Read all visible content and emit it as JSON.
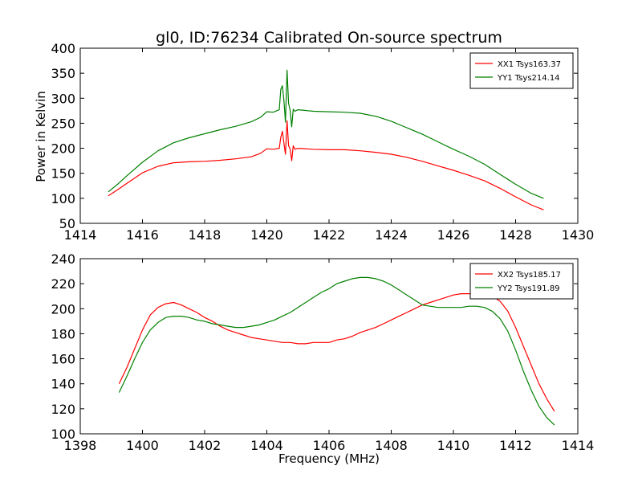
{
  "figure_title": "gl0, ID:76234 Calibrated On-source spectrum",
  "chart_data": [
    {
      "type": "line",
      "title": "gl0, ID:76234 Calibrated On-source spectrum",
      "xlabel": "",
      "ylabel": "Power in Kelvin",
      "xlim": [
        1414,
        1430
      ],
      "ylim": [
        50,
        400
      ],
      "xticks": [
        1414,
        1416,
        1418,
        1420,
        1422,
        1424,
        1426,
        1428,
        1430
      ],
      "yticks": [
        50,
        100,
        150,
        200,
        250,
        300,
        350,
        400
      ],
      "grid": false,
      "legend_position": "top-right",
      "series": [
        {
          "name": "XX1 Tsys163.37",
          "color": "#ff0000",
          "x": [
            1414.9,
            1415.2,
            1415.5,
            1416.0,
            1416.5,
            1417.0,
            1417.5,
            1418.0,
            1418.5,
            1419.0,
            1419.5,
            1419.8,
            1420.0,
            1420.2,
            1420.4,
            1420.45,
            1420.5,
            1420.55,
            1420.6,
            1420.65,
            1420.7,
            1420.75,
            1420.8,
            1420.85,
            1420.9,
            1421.0,
            1421.5,
            1422.0,
            1422.5,
            1423.0,
            1423.5,
            1424.0,
            1424.5,
            1425.0,
            1425.5,
            1426.0,
            1426.5,
            1427.0,
            1427.5,
            1428.0,
            1428.5,
            1428.9
          ],
          "y": [
            105,
            117,
            130,
            151,
            164,
            171,
            173,
            174,
            176,
            179,
            183,
            190,
            199,
            198,
            200,
            222,
            234,
            210,
            188,
            255,
            205,
            198,
            175,
            205,
            198,
            200,
            198,
            197,
            197,
            195,
            192,
            188,
            182,
            174,
            165,
            156,
            146,
            135,
            120,
            103,
            87,
            77
          ]
        },
        {
          "name": "YY1 Tsys214.14",
          "color": "#008000",
          "x": [
            1414.9,
            1415.2,
            1415.5,
            1416.0,
            1416.5,
            1417.0,
            1417.5,
            1418.0,
            1418.5,
            1419.0,
            1419.5,
            1419.8,
            1420.0,
            1420.2,
            1420.4,
            1420.45,
            1420.5,
            1420.55,
            1420.6,
            1420.65,
            1420.7,
            1420.75,
            1420.8,
            1420.85,
            1420.9,
            1421.0,
            1421.5,
            1422.0,
            1422.5,
            1423.0,
            1423.5,
            1424.0,
            1424.5,
            1425.0,
            1425.5,
            1426.0,
            1426.5,
            1427.0,
            1427.5,
            1428.0,
            1428.5,
            1428.9
          ],
          "y": [
            113,
            128,
            145,
            172,
            195,
            211,
            221,
            229,
            237,
            244,
            253,
            262,
            273,
            272,
            277,
            318,
            325,
            295,
            252,
            356,
            290,
            275,
            243,
            278,
            274,
            277,
            274,
            273,
            272,
            270,
            264,
            254,
            241,
            228,
            213,
            198,
            184,
            168,
            148,
            128,
            110,
            100
          ]
        }
      ]
    },
    {
      "type": "line",
      "title": "",
      "xlabel": "Frequency (MHz)",
      "ylabel": "",
      "xlim": [
        1398,
        1414
      ],
      "ylim": [
        100,
        240
      ],
      "xticks": [
        1398,
        1400,
        1402,
        1404,
        1406,
        1408,
        1410,
        1412,
        1414
      ],
      "yticks": [
        100,
        120,
        140,
        160,
        180,
        200,
        220,
        240
      ],
      "grid": false,
      "legend_position": "top-right",
      "series": [
        {
          "name": "XX2 Tsys185.17",
          "color": "#ff0000",
          "x": [
            1399.25,
            1399.5,
            1399.75,
            1400.0,
            1400.25,
            1400.5,
            1400.75,
            1401.0,
            1401.25,
            1401.5,
            1401.75,
            1402.0,
            1402.25,
            1402.5,
            1402.75,
            1403.0,
            1403.25,
            1403.5,
            1403.75,
            1404.0,
            1404.25,
            1404.5,
            1404.75,
            1405.0,
            1405.25,
            1405.5,
            1405.75,
            1406.0,
            1406.25,
            1406.5,
            1406.75,
            1407.0,
            1407.25,
            1407.5,
            1407.75,
            1408.0,
            1408.25,
            1408.5,
            1408.75,
            1409.0,
            1409.25,
            1409.5,
            1409.75,
            1410.0,
            1410.25,
            1410.5,
            1410.75,
            1411.0,
            1411.25,
            1411.5,
            1411.75,
            1412.0,
            1412.25,
            1412.5,
            1412.75,
            1413.0,
            1413.25
          ],
          "y": [
            140,
            153,
            168,
            183,
            195,
            201,
            204,
            205,
            203,
            200,
            197,
            193,
            190,
            186,
            183,
            181,
            179,
            177,
            176,
            175,
            174,
            173,
            173,
            172,
            172,
            173,
            173,
            173,
            175,
            176,
            178,
            181,
            183,
            185,
            188,
            191,
            194,
            197,
            200,
            203,
            205,
            207,
            209,
            211,
            212,
            212,
            212,
            211,
            210,
            206,
            198,
            185,
            170,
            155,
            140,
            128,
            118
          ]
        },
        {
          "name": "YY2 Tsys191.89",
          "color": "#008000",
          "x": [
            1399.25,
            1399.5,
            1399.75,
            1400.0,
            1400.25,
            1400.5,
            1400.75,
            1401.0,
            1401.25,
            1401.5,
            1401.75,
            1402.0,
            1402.25,
            1402.5,
            1402.75,
            1403.0,
            1403.25,
            1403.5,
            1403.75,
            1404.0,
            1404.25,
            1404.5,
            1404.75,
            1405.0,
            1405.25,
            1405.5,
            1405.75,
            1406.0,
            1406.25,
            1406.5,
            1406.75,
            1407.0,
            1407.25,
            1407.5,
            1407.75,
            1408.0,
            1408.25,
            1408.5,
            1408.75,
            1409.0,
            1409.25,
            1409.5,
            1409.75,
            1410.0,
            1410.25,
            1410.5,
            1410.75,
            1411.0,
            1411.25,
            1411.5,
            1411.75,
            1412.0,
            1412.25,
            1412.5,
            1412.75,
            1413.0,
            1413.25
          ],
          "y": [
            133,
            146,
            160,
            173,
            183,
            189,
            193,
            194,
            194,
            193,
            191,
            190,
            188,
            187,
            186,
            185,
            185,
            186,
            187,
            189,
            191,
            194,
            197,
            201,
            205,
            209,
            213,
            216,
            220,
            222,
            224,
            225,
            225,
            224,
            222,
            219,
            215,
            211,
            207,
            203,
            202,
            201,
            201,
            201,
            201,
            202,
            202,
            201,
            198,
            192,
            182,
            167,
            150,
            135,
            122,
            113,
            107
          ]
        }
      ]
    }
  ]
}
